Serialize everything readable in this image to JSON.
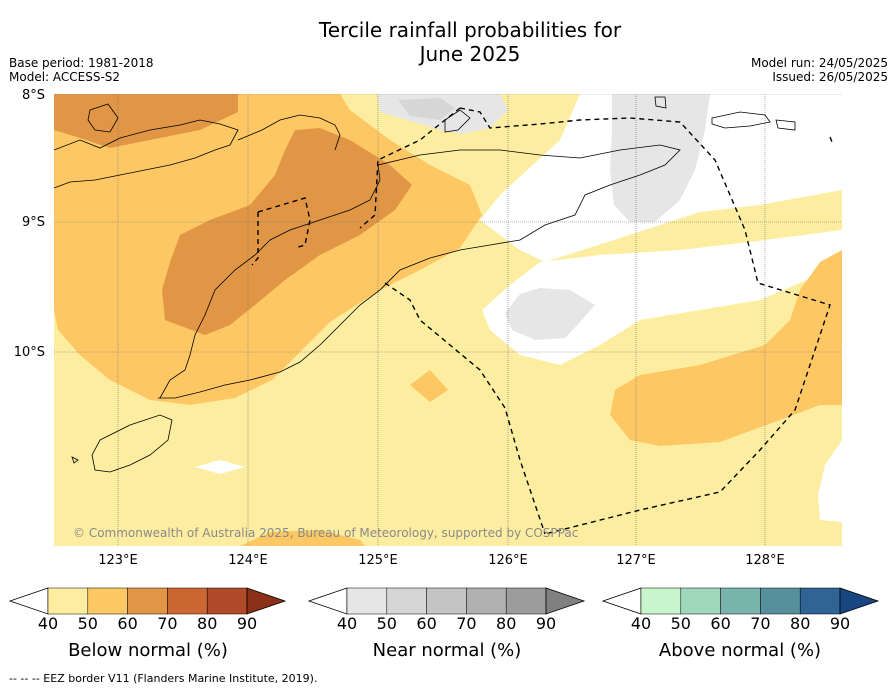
{
  "header": {
    "title_line1": "Tercile rainfall probabilities for",
    "title_line2": "June 2025",
    "base_period": "Base period: 1981-2018",
    "model": "Model: ACCESS-S2",
    "model_run": "Model run: 24/05/2025",
    "issued": "Issued: 26/05/2025"
  },
  "map": {
    "lat_labels": [
      "8°S",
      "9°S",
      "10°S"
    ],
    "lon_labels": [
      "123°E",
      "124°E",
      "125°E",
      "126°E",
      "127°E",
      "128°E"
    ],
    "copyright": "© Commonwealth of Australia 2025, Bureau of Meteorology, supported by COSPPac"
  },
  "legends": {
    "below": {
      "title": "Below normal (%)",
      "ticks": [
        "40",
        "50",
        "60",
        "70",
        "80",
        "90"
      ],
      "colors": [
        "#fdeda0",
        "#fdc864",
        "#e09644",
        "#cc6733",
        "#b04a28",
        "#8c3018"
      ]
    },
    "near": {
      "title": "Near normal (%)",
      "ticks": [
        "40",
        "50",
        "60",
        "70",
        "80",
        "90"
      ],
      "colors": [
        "#e6e6e6",
        "#d6d6d6",
        "#c4c4c4",
        "#b0b0b0",
        "#9c9c9c",
        "#808080"
      ]
    },
    "above": {
      "title": "Above normal (%)",
      "ticks": [
        "40",
        "50",
        "60",
        "70",
        "80",
        "90"
      ],
      "colors": [
        "#c8f5cc",
        "#a0d8bc",
        "#78b4ac",
        "#55909c",
        "#306494",
        "#184680"
      ]
    }
  },
  "footer": {
    "eez_note": "--  --  -- EEZ border V11 (Flanders Marine Institute, 2019)."
  }
}
